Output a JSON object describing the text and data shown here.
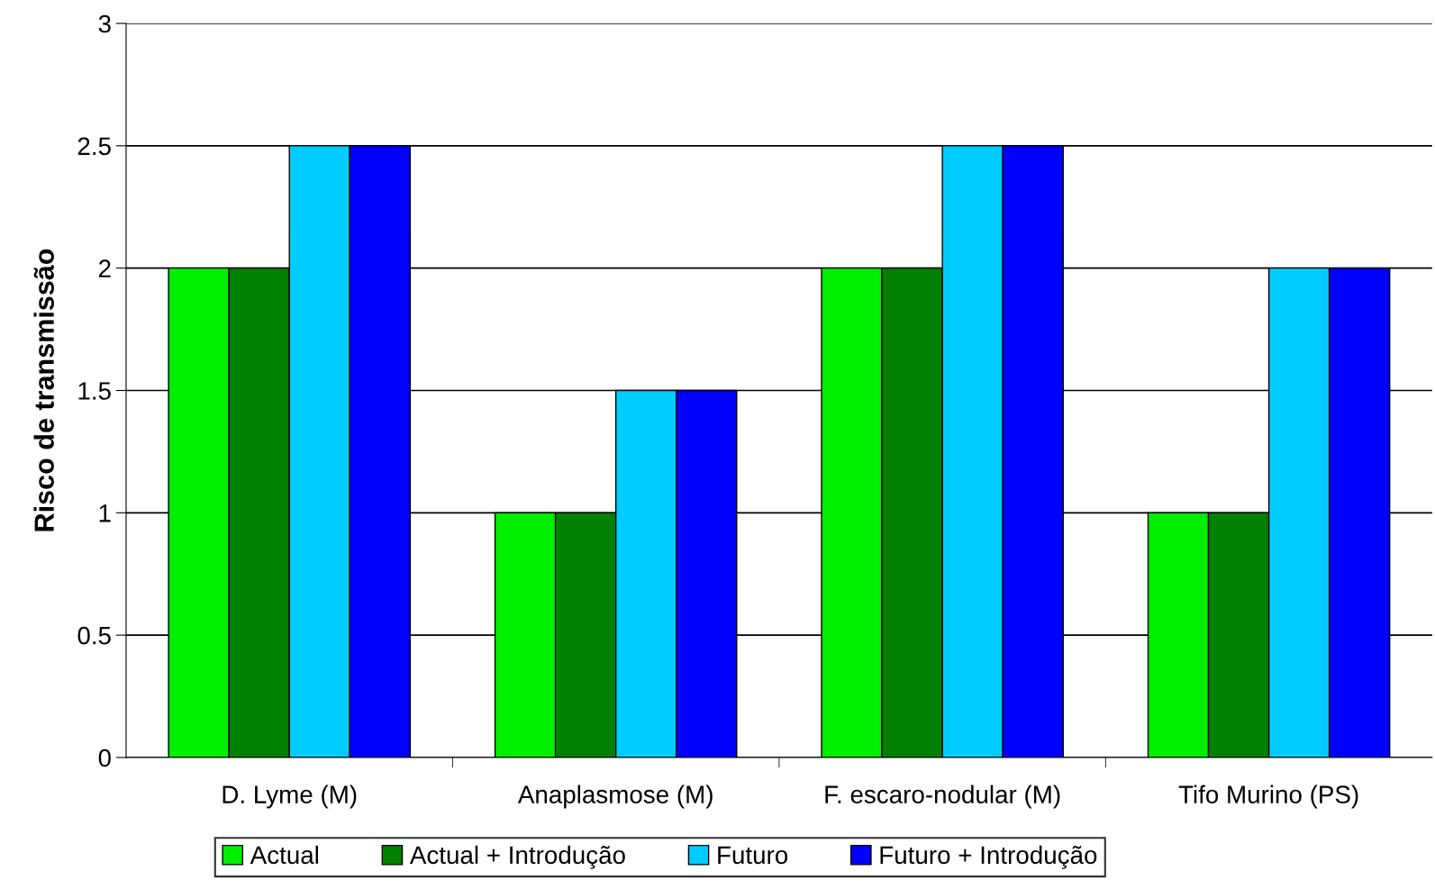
{
  "chart_data": {
    "type": "bar",
    "ylabel": "Risco de transmissão",
    "categories": [
      "D. Lyme (M)",
      "Anaplasmose (M)",
      "F. escaro-nodular (M)",
      "Tifo Murino (PS)"
    ],
    "series": [
      {
        "name": "Actual",
        "color": "#00ee00",
        "values": [
          2,
          1,
          2,
          1
        ]
      },
      {
        "name": "Actual + Introdução",
        "color": "#008000",
        "values": [
          2,
          1,
          2,
          1
        ]
      },
      {
        "name": "Futuro",
        "color": "#00ccff",
        "values": [
          2.5,
          1.5,
          2.5,
          2
        ]
      },
      {
        "name": "Futuro + Introdução",
        "color": "#0000ff",
        "values": [
          2.5,
          1.5,
          2.5,
          2
        ]
      }
    ],
    "ylim": [
      0,
      3
    ],
    "yticks": [
      0,
      0.5,
      1,
      1.5,
      2,
      2.5,
      3
    ],
    "grid": "y",
    "legend": "bottom"
  }
}
